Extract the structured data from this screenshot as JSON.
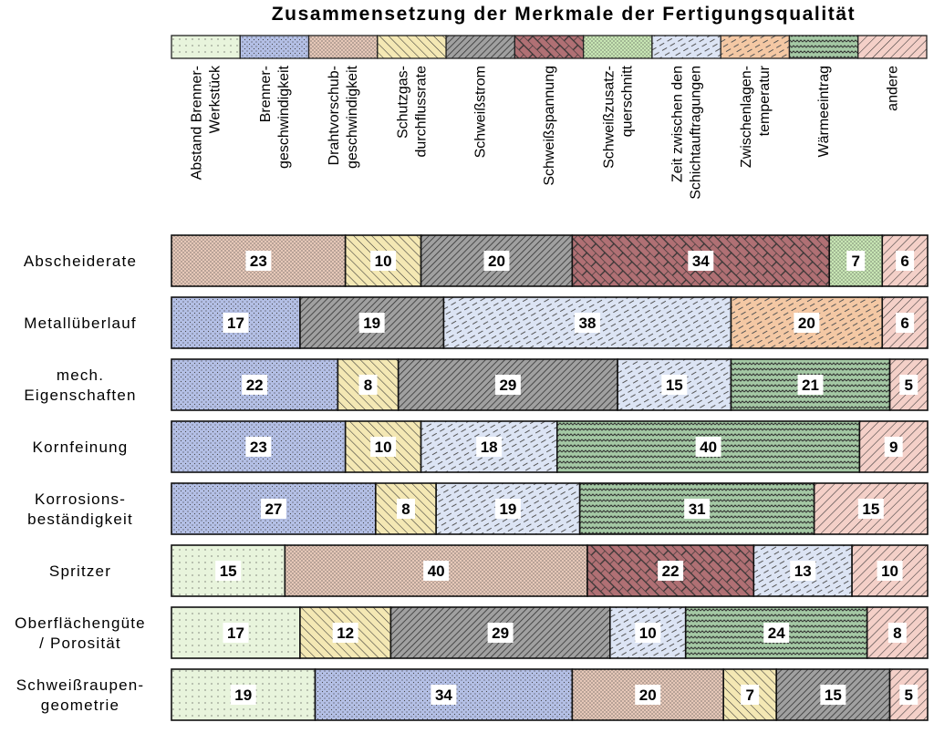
{
  "chart_data": {
    "type": "bar",
    "orientation": "horizontal",
    "stacked": true,
    "normalized_percent": true,
    "title": "Zusammensetzung der Merkmale der Fertigungsqualität",
    "legend_position": "top",
    "data_labels": true,
    "series": [
      {
        "key": "abstand",
        "name_lines": [
          "Abstand Brenner-",
          "Werkstück"
        ],
        "color": "#e8f4dc",
        "pattern": "dots-sparse"
      },
      {
        "key": "brennergeschw",
        "name_lines": [
          "Brenner-",
          "geschwindigkeit"
        ],
        "color": "#b4c0e6",
        "pattern": "dots"
      },
      {
        "key": "drahtvorschub",
        "name_lines": [
          "Drahtvorschub-",
          "geschwindigkeit"
        ],
        "color": "#e6c8b8",
        "pattern": "dots-dense"
      },
      {
        "key": "schutzgas",
        "name_lines": [
          "Schutzgas-",
          "durchflussrate"
        ],
        "color": "#f4e8b4",
        "pattern": "diag-back"
      },
      {
        "key": "schweissstrom",
        "name_lines": [
          "Schweißstrom"
        ],
        "color": "#a0a0a0",
        "pattern": "diag-dense"
      },
      {
        "key": "schweissspannung",
        "name_lines": [
          "Schweißspannung"
        ],
        "color": "#b07074",
        "pattern": "brick"
      },
      {
        "key": "zusatzquerschnitt",
        "name_lines": [
          "Schweißzusatz-",
          "querschnitt"
        ],
        "color": "#c8e6b4",
        "pattern": "dots-dense"
      },
      {
        "key": "zeit",
        "name_lines": [
          "Zeit zwischen den",
          "Schichtauftragungen"
        ],
        "color": "#dce4f4",
        "pattern": "dash"
      },
      {
        "key": "zwischenlagen",
        "name_lines": [
          "Zwischenlagen-",
          "temperatur"
        ],
        "color": "#f4c8a4",
        "pattern": "dash"
      },
      {
        "key": "waermeeintrag",
        "name_lines": [
          "Wärmeeintrag"
        ],
        "color": "#a4c8a4",
        "pattern": "zigzag"
      },
      {
        "key": "andere",
        "name_lines": [
          "andere"
        ],
        "color": "#f4d0c8",
        "pattern": "diag"
      }
    ],
    "rows": [
      {
        "label_lines": [
          "Abscheiderate"
        ],
        "segments": [
          {
            "key": "drahtvorschub",
            "value": 23
          },
          {
            "key": "schutzgas",
            "value": 10
          },
          {
            "key": "schweissstrom",
            "value": 20
          },
          {
            "key": "schweissspannung",
            "value": 34
          },
          {
            "key": "zusatzquerschnitt",
            "value": 7
          },
          {
            "key": "andere",
            "value": 6
          }
        ]
      },
      {
        "label_lines": [
          "Metallüberlauf"
        ],
        "segments": [
          {
            "key": "brennergeschw",
            "value": 17
          },
          {
            "key": "schweissstrom",
            "value": 19
          },
          {
            "key": "zeit",
            "value": 38
          },
          {
            "key": "zwischenlagen",
            "value": 20
          },
          {
            "key": "andere",
            "value": 6
          }
        ]
      },
      {
        "label_lines": [
          "mech.",
          "Eigenschaften"
        ],
        "segments": [
          {
            "key": "brennergeschw",
            "value": 22
          },
          {
            "key": "schutzgas",
            "value": 8
          },
          {
            "key": "schweissstrom",
            "value": 29
          },
          {
            "key": "zeit",
            "value": 15
          },
          {
            "key": "waermeeintrag",
            "value": 21
          },
          {
            "key": "andere",
            "value": 5
          }
        ]
      },
      {
        "label_lines": [
          "Kornfeinung"
        ],
        "segments": [
          {
            "key": "brennergeschw",
            "value": 23
          },
          {
            "key": "schutzgas",
            "value": 10
          },
          {
            "key": "zeit",
            "value": 18
          },
          {
            "key": "waermeeintrag",
            "value": 40
          },
          {
            "key": "andere",
            "value": 9
          }
        ]
      },
      {
        "label_lines": [
          "Korrosions-",
          "beständigkeit"
        ],
        "segments": [
          {
            "key": "brennergeschw",
            "value": 27
          },
          {
            "key": "schutzgas",
            "value": 8
          },
          {
            "key": "zeit",
            "value": 19
          },
          {
            "key": "waermeeintrag",
            "value": 31
          },
          {
            "key": "andere",
            "value": 15
          }
        ]
      },
      {
        "label_lines": [
          "Spritzer"
        ],
        "segments": [
          {
            "key": "abstand",
            "value": 15
          },
          {
            "key": "drahtvorschub",
            "value": 40
          },
          {
            "key": "schweissspannung",
            "value": 22
          },
          {
            "key": "zeit",
            "value": 13
          },
          {
            "key": "andere",
            "value": 10
          }
        ]
      },
      {
        "label_lines": [
          "Oberflächengüte",
          "/ Porosität"
        ],
        "segments": [
          {
            "key": "abstand",
            "value": 17
          },
          {
            "key": "schutzgas",
            "value": 12
          },
          {
            "key": "schweissstrom",
            "value": 29
          },
          {
            "key": "zeit",
            "value": 10
          },
          {
            "key": "waermeeintrag",
            "value": 24
          },
          {
            "key": "andere",
            "value": 8
          }
        ]
      },
      {
        "label_lines": [
          "Schweißraupen-",
          "geometrie"
        ],
        "segments": [
          {
            "key": "abstand",
            "value": 19
          },
          {
            "key": "brennergeschw",
            "value": 34
          },
          {
            "key": "drahtvorschub",
            "value": 20
          },
          {
            "key": "schutzgas",
            "value": 7
          },
          {
            "key": "schweissstrom",
            "value": 15
          },
          {
            "key": "andere",
            "value": 5
          }
        ]
      }
    ]
  }
}
